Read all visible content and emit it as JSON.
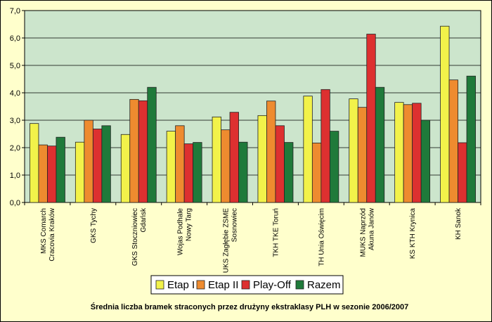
{
  "chart_data": {
    "type": "bar",
    "title": "Średnia liczba bramek straconych przez drużyny ekstraklasy PLH w sezonie 2006/2007",
    "xlabel": "",
    "ylabel": "",
    "ylim": [
      0,
      7
    ],
    "yticks": [
      "0,0",
      "1,0",
      "2,0",
      "3,0",
      "4,0",
      "5,0",
      "6,0",
      "7,0"
    ],
    "grid": true,
    "legend_position": "bottom",
    "categories": [
      [
        "MKS Comarch",
        "Cracovia Kraków"
      ],
      [
        "GKS Tychy"
      ],
      [
        "GKS Stoczniowiec",
        "Gdańsk"
      ],
      [
        "Wojas Podhale",
        "Nowy Targ"
      ],
      [
        "UKS Zagłębie ZSME",
        "Sosnowiec"
      ],
      [
        "TKH TKE Toruń"
      ],
      [
        "TH Unia Oświęcim"
      ],
      [
        "MUKS Naprzód",
        "Akuna Janów"
      ],
      [
        "KS KTH Krynica"
      ],
      [
        "KH Sanok"
      ]
    ],
    "series": [
      {
        "name": "Etap I",
        "color": "#f2f24a",
        "values": [
          2.88,
          2.2,
          2.48,
          2.6,
          3.12,
          3.17,
          3.88,
          3.78,
          3.65,
          6.43
        ]
      },
      {
        "name": "Etap II",
        "color": "#ee8b2f",
        "values": [
          2.1,
          3.0,
          3.76,
          2.8,
          2.65,
          3.7,
          2.17,
          3.47,
          3.57,
          4.47
        ]
      },
      {
        "name": "Play-Off",
        "color": "#dd3030",
        "values": [
          2.06,
          2.68,
          3.71,
          2.14,
          3.29,
          2.8,
          4.12,
          6.14,
          3.62,
          2.18
        ]
      },
      {
        "name": "Razem",
        "color": "#1f7a3a",
        "values": [
          2.38,
          2.8,
          4.2,
          2.19,
          2.2,
          2.19,
          2.6,
          4.2,
          3.0,
          4.61
        ]
      }
    ],
    "plot_background": "#cce5cc"
  }
}
